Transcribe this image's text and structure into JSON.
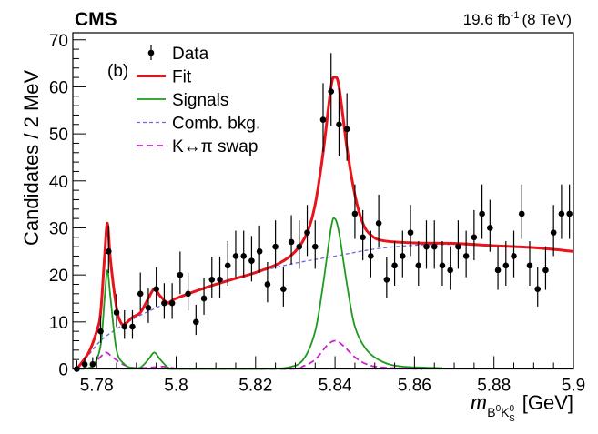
{
  "chart_data": {
    "type": "scatter",
    "experiment": "CMS",
    "luminosity_label": "19.6 fb",
    "luminosity_sup": "-1",
    "energy_label": "(8 TeV)",
    "panel_label": "(b)",
    "ylabel": "Candidates / 2 MeV",
    "xlabel_var": "m",
    "xlabel_sub_b": "B",
    "xlabel_sub_b_sup": "0",
    "xlabel_sub_k": "K",
    "xlabel_sub_k_sup": "0",
    "xlabel_sub_k_sub": "S",
    "xlabel_unit": "[GeV]",
    "xlim": [
      5.774,
      5.9
    ],
    "ylim": [
      0,
      71.5
    ],
    "x_ticks": [
      "5.78",
      "5.8",
      "5.82",
      "5.84",
      "5.86",
      "5.88",
      "5.9"
    ],
    "y_ticks": [
      "0",
      "10",
      "20",
      "30",
      "40",
      "50",
      "60",
      "70"
    ],
    "legend_position": "top-left",
    "legend": [
      {
        "label": "Data",
        "style": "marker"
      },
      {
        "label": "Fit",
        "style": "line",
        "color": "#e8141c"
      },
      {
        "label": "Signals",
        "style": "line",
        "color": "#1f9a1f"
      },
      {
        "label": "Comb. bkg.",
        "style": "dotted",
        "color": "#6a6ad8"
      },
      {
        "label": "K↔π swap",
        "style": "dashed",
        "color": "#cc22cc"
      }
    ],
    "data": {
      "name": "Data",
      "x": [
        5.775,
        5.777,
        5.779,
        5.781,
        5.783,
        5.785,
        5.787,
        5.789,
        5.791,
        5.793,
        5.795,
        5.797,
        5.799,
        5.801,
        5.803,
        5.805,
        5.807,
        5.809,
        5.811,
        5.813,
        5.815,
        5.817,
        5.819,
        5.821,
        5.823,
        5.825,
        5.827,
        5.829,
        5.831,
        5.833,
        5.835,
        5.837,
        5.839,
        5.841,
        5.843,
        5.845,
        5.847,
        5.849,
        5.851,
        5.853,
        5.855,
        5.857,
        5.859,
        5.861,
        5.863,
        5.865,
        5.867,
        5.869,
        5.871,
        5.873,
        5.875,
        5.877,
        5.879,
        5.881,
        5.883,
        5.885,
        5.887,
        5.889,
        5.891,
        5.893,
        5.895,
        5.897,
        5.899
      ],
      "y": [
        0,
        1,
        1,
        8,
        25,
        12,
        9,
        9,
        16,
        13,
        17,
        14,
        14,
        20,
        16,
        10,
        15,
        19,
        19,
        22,
        24,
        24,
        23,
        25,
        18,
        26,
        17,
        27,
        26,
        29,
        26,
        53,
        59,
        52,
        51,
        33,
        28,
        24,
        31,
        19,
        22,
        24,
        29,
        22,
        26,
        26,
        22,
        21,
        26,
        24,
        28,
        33,
        30,
        21,
        22,
        24,
        33,
        22,
        17,
        21,
        29,
        33,
        33
      ]
    },
    "curves": [
      {
        "name": "Fit",
        "color": "#e8141c",
        "x": [
          5.775,
          5.778,
          5.78,
          5.781,
          5.782,
          5.7827,
          5.7835,
          5.785,
          5.786,
          5.787,
          5.789,
          5.791,
          5.793,
          5.7945,
          5.796,
          5.798,
          5.8,
          5.81,
          5.82,
          5.826,
          5.83,
          5.833,
          5.835,
          5.837,
          5.839,
          5.84,
          5.841,
          5.843,
          5.845,
          5.847,
          5.849,
          5.852,
          5.86,
          5.87,
          5.88,
          5.89,
          5.9
        ],
        "y": [
          0,
          3.5,
          8,
          12,
          24,
          31,
          23,
          13,
          10,
          9.5,
          11,
          12,
          15,
          17,
          15.5,
          14,
          15,
          18,
          20.5,
          22.5,
          25,
          29,
          35,
          46,
          60,
          62,
          60,
          47,
          37,
          31,
          28.5,
          27.3,
          26.8,
          26.7,
          26.2,
          25.8,
          25
        ]
      },
      {
        "name": "Signals",
        "color": "#1f9a1f",
        "x": [
          5.776,
          5.779,
          5.781,
          5.782,
          5.7827,
          5.7835,
          5.785,
          5.787,
          5.789,
          5.791,
          5.793,
          5.7945,
          5.796,
          5.798,
          5.8,
          5.82,
          5.828,
          5.832,
          5.835,
          5.837,
          5.839,
          5.8399,
          5.841,
          5.843,
          5.845,
          5.848,
          5.852,
          5.857,
          5.867
        ],
        "y": [
          0,
          0.5,
          5,
          15,
          21,
          15,
          4,
          1,
          0.2,
          0.3,
          2,
          3.5,
          2,
          0.3,
          0,
          0,
          0.3,
          2,
          8,
          18,
          30,
          32,
          29,
          18,
          9,
          4,
          1.5,
          0.5,
          0.2
        ]
      },
      {
        "name": "Comb. bkg.",
        "color": "#6a6ad8",
        "x": [
          5.775,
          5.778,
          5.781,
          5.785,
          5.79,
          5.795,
          5.8,
          5.81,
          5.82,
          5.83,
          5.84,
          5.85,
          5.86,
          5.87,
          5.88,
          5.89,
          5.9
        ],
        "y": [
          0,
          3,
          6,
          8.5,
          11,
          13,
          15,
          18,
          20.5,
          22.5,
          24,
          25.5,
          26.3,
          26.5,
          26.2,
          25.8,
          25
        ]
      },
      {
        "name": "K↔π swap",
        "color": "#cc22cc",
        "x": [
          5.776,
          5.779,
          5.7815,
          5.7825,
          5.784,
          5.787,
          5.79,
          5.795,
          5.797,
          5.8,
          5.803,
          5.828,
          5.832,
          5.835,
          5.838,
          5.84,
          5.842,
          5.845,
          5.848,
          5.852,
          5.862
        ],
        "y": [
          0,
          1,
          3,
          3.5,
          2.5,
          0.8,
          0.2,
          0.4,
          0.5,
          0.1,
          0,
          0,
          0.6,
          2,
          5,
          6,
          5,
          2.5,
          1,
          0.3,
          0
        ]
      }
    ]
  }
}
